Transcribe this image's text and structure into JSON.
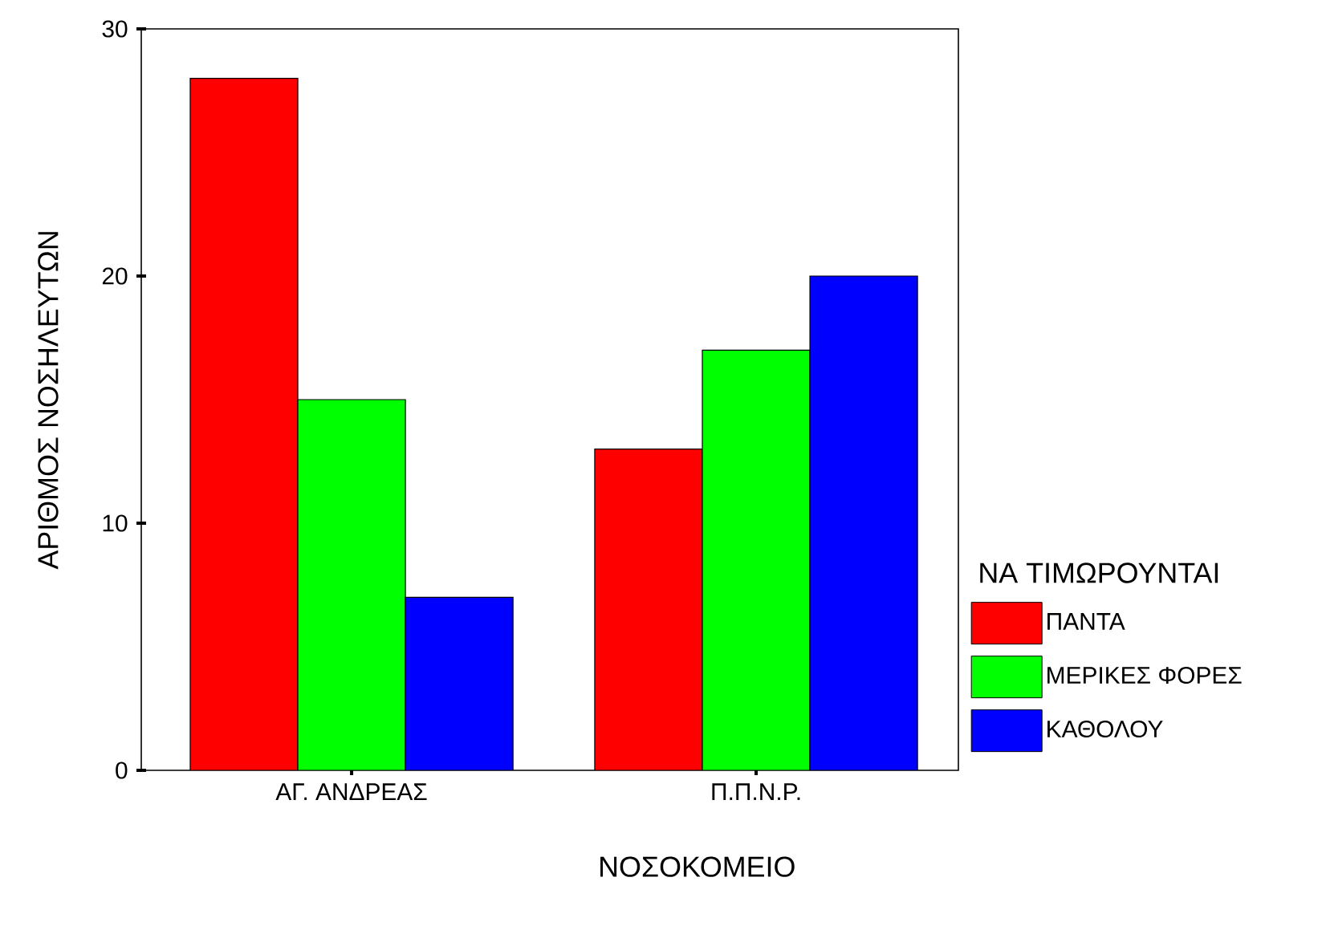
{
  "chart_data": {
    "type": "bar",
    "xlabel": "ΝΟΣΟΚΟΜΕΙΟ",
    "ylabel": "ΑΡΙΘΜΟΣ ΝΟΣΗΛΕΥΤΩΝ",
    "legend_title": "ΝΑ ΤΙΜΩΡΟΥΝΤΑΙ",
    "categories": [
      "ΑΓ. ΑΝΔΡΕΑΣ",
      "Π.Π.Ν.Ρ."
    ],
    "series": [
      {
        "name": "ΠΑΝΤΑ",
        "color": "#ff0000",
        "values": [
          28,
          13
        ]
      },
      {
        "name": "ΜΕΡΙΚΕΣ ΦΟΡΕΣ",
        "color": "#00ff00",
        "values": [
          15,
          17
        ]
      },
      {
        "name": "ΚΑΘΟΛΟΥ",
        "color": "#0000ff",
        "values": [
          7,
          20
        ]
      }
    ],
    "ylim": [
      0,
      30
    ],
    "yticks": [
      0,
      10,
      20,
      30
    ],
    "legend": "right"
  }
}
